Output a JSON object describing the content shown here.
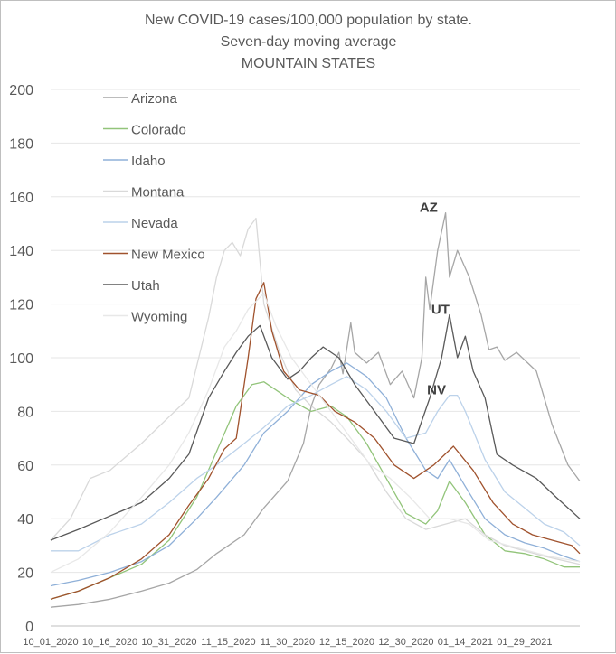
{
  "chart_data": {
    "type": "line",
    "title_lines": [
      "New COVID-19 cases/100,000 population by state.",
      "Seven-day moving average",
      "MOUNTAIN STATES"
    ],
    "xlabel": "",
    "ylabel": "",
    "ylim": [
      0,
      200
    ],
    "yticks": [
      0,
      20,
      40,
      60,
      80,
      100,
      120,
      140,
      160,
      180,
      200
    ],
    "grid": true,
    "legend_position": "top-left",
    "x_start": "2020-10-01",
    "x_end": "2021-02-12",
    "xtick_labels": [
      "10_01_2020",
      "10_16_2020",
      "10_31_2020",
      "11_15_2020",
      "11_30_2020",
      "12_15_2020",
      "12_30_2020",
      "01_14_2021",
      "01_29_2021"
    ],
    "xtick_dates": [
      "2020-10-01",
      "2020-10-16",
      "2020-10-31",
      "2020-11-15",
      "2020-11-30",
      "2020-12-15",
      "2020-12-30",
      "2021-01-14",
      "2021-01-29"
    ],
    "annotations": [
      {
        "text": "AZ",
        "date": "2021-01-07",
        "value": 154
      },
      {
        "text": "UT",
        "date": "2021-01-10",
        "value": 116
      },
      {
        "text": "NV",
        "date": "2021-01-09",
        "value": 86
      }
    ],
    "series": [
      {
        "name": "Arizona",
        "color": "#a6a6a6",
        "points": [
          [
            "2020-10-01",
            7
          ],
          [
            "2020-10-08",
            8
          ],
          [
            "2020-10-16",
            10
          ],
          [
            "2020-10-24",
            13
          ],
          [
            "2020-10-31",
            16
          ],
          [
            "2020-11-07",
            21
          ],
          [
            "2020-11-12",
            27
          ],
          [
            "2020-11-19",
            34
          ],
          [
            "2020-11-24",
            44
          ],
          [
            "2020-11-30",
            54
          ],
          [
            "2020-12-02",
            61
          ],
          [
            "2020-12-04",
            68
          ],
          [
            "2020-12-06",
            82
          ],
          [
            "2020-12-08",
            90
          ],
          [
            "2020-12-11",
            96
          ],
          [
            "2020-12-13",
            102
          ],
          [
            "2020-12-14",
            94
          ],
          [
            "2020-12-16",
            113
          ],
          [
            "2020-12-17",
            102
          ],
          [
            "2020-12-20",
            98
          ],
          [
            "2020-12-23",
            102
          ],
          [
            "2020-12-26",
            90
          ],
          [
            "2020-12-29",
            95
          ],
          [
            "2021-01-01",
            85
          ],
          [
            "2021-01-03",
            100
          ],
          [
            "2021-01-04",
            130
          ],
          [
            "2021-01-05",
            118
          ],
          [
            "2021-01-07",
            140
          ],
          [
            "2021-01-09",
            154
          ],
          [
            "2021-01-10",
            130
          ],
          [
            "2021-01-12",
            140
          ],
          [
            "2021-01-15",
            130
          ],
          [
            "2021-01-18",
            116
          ],
          [
            "2021-01-20",
            103
          ],
          [
            "2021-01-22",
            104
          ],
          [
            "2021-01-24",
            99
          ],
          [
            "2021-01-27",
            102
          ],
          [
            "2021-02-01",
            95
          ],
          [
            "2021-02-05",
            75
          ],
          [
            "2021-02-09",
            60
          ],
          [
            "2021-02-12",
            54
          ]
        ]
      },
      {
        "name": "Colorado",
        "color": "#92c47a",
        "points": [
          [
            "2020-10-01",
            10
          ],
          [
            "2020-10-08",
            13
          ],
          [
            "2020-10-16",
            18
          ],
          [
            "2020-10-24",
            23
          ],
          [
            "2020-10-31",
            32
          ],
          [
            "2020-11-07",
            48
          ],
          [
            "2020-11-12",
            65
          ],
          [
            "2020-11-17",
            82
          ],
          [
            "2020-11-21",
            90
          ],
          [
            "2020-11-24",
            91
          ],
          [
            "2020-11-27",
            88
          ],
          [
            "2020-12-01",
            84
          ],
          [
            "2020-12-06",
            80
          ],
          [
            "2020-12-11",
            82
          ],
          [
            "2020-12-15",
            78
          ],
          [
            "2020-12-20",
            68
          ],
          [
            "2020-12-25",
            55
          ],
          [
            "2020-12-30",
            42
          ],
          [
            "2021-01-04",
            38
          ],
          [
            "2021-01-07",
            43
          ],
          [
            "2021-01-10",
            54
          ],
          [
            "2021-01-14",
            46
          ],
          [
            "2021-01-19",
            34
          ],
          [
            "2021-01-24",
            28
          ],
          [
            "2021-01-29",
            27
          ],
          [
            "2021-02-03",
            25
          ],
          [
            "2021-02-08",
            22
          ],
          [
            "2021-02-12",
            22
          ]
        ]
      },
      {
        "name": "Idaho",
        "color": "#8fb0d8",
        "points": [
          [
            "2020-10-01",
            15
          ],
          [
            "2020-10-08",
            17
          ],
          [
            "2020-10-16",
            20
          ],
          [
            "2020-10-24",
            24
          ],
          [
            "2020-10-31",
            30
          ],
          [
            "2020-11-07",
            40
          ],
          [
            "2020-11-12",
            48
          ],
          [
            "2020-11-19",
            60
          ],
          [
            "2020-11-24",
            72
          ],
          [
            "2020-11-30",
            80
          ],
          [
            "2020-12-06",
            90
          ],
          [
            "2020-12-11",
            95
          ],
          [
            "2020-12-15",
            98
          ],
          [
            "2020-12-20",
            93
          ],
          [
            "2020-12-25",
            85
          ],
          [
            "2020-12-30",
            70
          ],
          [
            "2021-01-04",
            58
          ],
          [
            "2021-01-07",
            55
          ],
          [
            "2021-01-10",
            62
          ],
          [
            "2021-01-14",
            52
          ],
          [
            "2021-01-19",
            40
          ],
          [
            "2021-01-24",
            34
          ],
          [
            "2021-01-29",
            31
          ],
          [
            "2021-02-03",
            29
          ],
          [
            "2021-02-08",
            26
          ],
          [
            "2021-02-12",
            24
          ]
        ]
      },
      {
        "name": "Montana",
        "color": "#d9d9d9",
        "points": [
          [
            "2020-10-01",
            32
          ],
          [
            "2020-10-06",
            40
          ],
          [
            "2020-10-11",
            55
          ],
          [
            "2020-10-16",
            58
          ],
          [
            "2020-10-24",
            68
          ],
          [
            "2020-10-31",
            78
          ],
          [
            "2020-11-05",
            85
          ],
          [
            "2020-11-10",
            115
          ],
          [
            "2020-11-12",
            130
          ],
          [
            "2020-11-14",
            140
          ],
          [
            "2020-11-16",
            143
          ],
          [
            "2020-11-18",
            138
          ],
          [
            "2020-11-20",
            148
          ],
          [
            "2020-11-22",
            152
          ],
          [
            "2020-11-24",
            120
          ],
          [
            "2020-11-28",
            102
          ],
          [
            "2020-12-02",
            88
          ],
          [
            "2020-12-06",
            82
          ],
          [
            "2020-12-11",
            76
          ],
          [
            "2020-12-15",
            70
          ],
          [
            "2020-12-20",
            62
          ],
          [
            "2020-12-25",
            50
          ],
          [
            "2020-12-30",
            40
          ],
          [
            "2021-01-04",
            36
          ],
          [
            "2021-01-09",
            38
          ],
          [
            "2021-01-14",
            40
          ],
          [
            "2021-01-19",
            34
          ],
          [
            "2021-01-24",
            30
          ],
          [
            "2021-01-29",
            28
          ],
          [
            "2021-02-03",
            26
          ],
          [
            "2021-02-12",
            23
          ]
        ]
      },
      {
        "name": "Nevada",
        "color": "#bcd2ea",
        "points": [
          [
            "2020-10-01",
            28
          ],
          [
            "2020-10-08",
            28
          ],
          [
            "2020-10-16",
            34
          ],
          [
            "2020-10-24",
            38
          ],
          [
            "2020-10-31",
            46
          ],
          [
            "2020-11-07",
            55
          ],
          [
            "2020-11-12",
            60
          ],
          [
            "2020-11-19",
            68
          ],
          [
            "2020-11-24",
            74
          ],
          [
            "2020-11-30",
            82
          ],
          [
            "2020-12-06",
            86
          ],
          [
            "2020-12-11",
            90
          ],
          [
            "2020-12-15",
            93
          ],
          [
            "2020-12-20",
            88
          ],
          [
            "2020-12-25",
            80
          ],
          [
            "2020-12-30",
            70
          ],
          [
            "2021-01-04",
            72
          ],
          [
            "2021-01-07",
            80
          ],
          [
            "2021-01-10",
            86
          ],
          [
            "2021-01-12",
            86
          ],
          [
            "2021-01-14",
            80
          ],
          [
            "2021-01-19",
            62
          ],
          [
            "2021-01-24",
            50
          ],
          [
            "2021-01-29",
            44
          ],
          [
            "2021-02-03",
            38
          ],
          [
            "2021-02-08",
            35
          ],
          [
            "2021-02-12",
            30
          ]
        ]
      },
      {
        "name": "New Mexico",
        "color": "#a0522d",
        "points": [
          [
            "2020-10-01",
            10
          ],
          [
            "2020-10-08",
            13
          ],
          [
            "2020-10-16",
            18
          ],
          [
            "2020-10-24",
            25
          ],
          [
            "2020-10-31",
            34
          ],
          [
            "2020-11-05",
            45
          ],
          [
            "2020-11-10",
            55
          ],
          [
            "2020-11-14",
            66
          ],
          [
            "2020-11-17",
            70
          ],
          [
            "2020-11-20",
            100
          ],
          [
            "2020-11-22",
            122
          ],
          [
            "2020-11-24",
            128
          ],
          [
            "2020-11-26",
            110
          ],
          [
            "2020-11-29",
            95
          ],
          [
            "2020-12-03",
            88
          ],
          [
            "2020-12-08",
            86
          ],
          [
            "2020-12-12",
            80
          ],
          [
            "2020-12-17",
            76
          ],
          [
            "2020-12-22",
            70
          ],
          [
            "2020-12-27",
            60
          ],
          [
            "2021-01-01",
            55
          ],
          [
            "2021-01-06",
            60
          ],
          [
            "2021-01-11",
            67
          ],
          [
            "2021-01-16",
            58
          ],
          [
            "2021-01-21",
            46
          ],
          [
            "2021-01-26",
            38
          ],
          [
            "2021-01-31",
            34
          ],
          [
            "2021-02-05",
            32
          ],
          [
            "2021-02-10",
            30
          ],
          [
            "2021-02-12",
            27
          ]
        ]
      },
      {
        "name": "Utah",
        "color": "#595959",
        "points": [
          [
            "2020-10-01",
            32
          ],
          [
            "2020-10-08",
            36
          ],
          [
            "2020-10-16",
            41
          ],
          [
            "2020-10-24",
            46
          ],
          [
            "2020-10-31",
            55
          ],
          [
            "2020-11-05",
            64
          ],
          [
            "2020-11-10",
            85
          ],
          [
            "2020-11-14",
            95
          ],
          [
            "2020-11-17",
            102
          ],
          [
            "2020-11-20",
            108
          ],
          [
            "2020-11-23",
            112
          ],
          [
            "2020-11-26",
            100
          ],
          [
            "2020-11-30",
            92
          ],
          [
            "2020-12-03",
            95
          ],
          [
            "2020-12-06",
            100
          ],
          [
            "2020-12-09",
            104
          ],
          [
            "2020-12-13",
            100
          ],
          [
            "2020-12-17",
            90
          ],
          [
            "2020-12-22",
            80
          ],
          [
            "2020-12-27",
            70
          ],
          [
            "2021-01-01",
            68
          ],
          [
            "2021-01-05",
            85
          ],
          [
            "2021-01-08",
            100
          ],
          [
            "2021-01-10",
            116
          ],
          [
            "2021-01-12",
            100
          ],
          [
            "2021-01-14",
            108
          ],
          [
            "2021-01-16",
            95
          ],
          [
            "2021-01-19",
            85
          ],
          [
            "2021-01-22",
            64
          ],
          [
            "2021-01-26",
            60
          ],
          [
            "2021-02-01",
            55
          ],
          [
            "2021-02-06",
            48
          ],
          [
            "2021-02-12",
            40
          ]
        ]
      },
      {
        "name": "Wyoming",
        "color": "#e8e8e8",
        "points": [
          [
            "2020-10-01",
            20
          ],
          [
            "2020-10-08",
            25
          ],
          [
            "2020-10-16",
            35
          ],
          [
            "2020-10-24",
            48
          ],
          [
            "2020-10-31",
            60
          ],
          [
            "2020-11-05",
            72
          ],
          [
            "2020-11-10",
            88
          ],
          [
            "2020-11-14",
            104
          ],
          [
            "2020-11-17",
            110
          ],
          [
            "2020-11-20",
            118
          ],
          [
            "2020-11-24",
            124
          ],
          [
            "2020-11-27",
            112
          ],
          [
            "2020-12-01",
            100
          ],
          [
            "2020-12-06",
            90
          ],
          [
            "2020-12-11",
            80
          ],
          [
            "2020-12-16",
            70
          ],
          [
            "2020-12-21",
            60
          ],
          [
            "2020-12-26",
            55
          ],
          [
            "2020-12-31",
            48
          ],
          [
            "2021-01-05",
            40
          ],
          [
            "2021-01-10",
            40
          ],
          [
            "2021-01-15",
            38
          ],
          [
            "2021-01-20",
            32
          ],
          [
            "2021-01-25",
            30
          ],
          [
            "2021-01-30",
            28
          ],
          [
            "2021-02-04",
            26
          ],
          [
            "2021-02-12",
            24
          ]
        ]
      }
    ]
  }
}
